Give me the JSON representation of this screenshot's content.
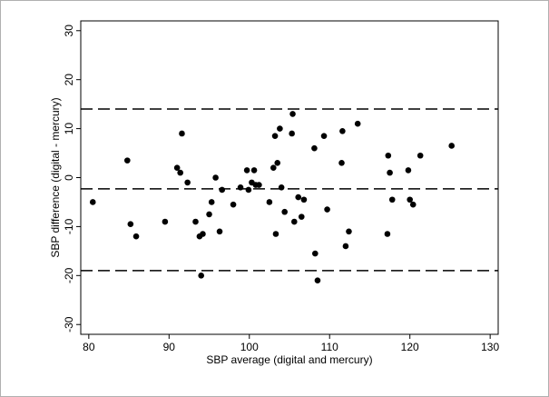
{
  "chart_data": {
    "type": "scatter",
    "title": "",
    "xlabel": "SBP average (digital and mercury)",
    "ylabel": "SBP difference (digital - mercury)",
    "xlim": [
      79,
      131
    ],
    "ylim": [
      -32,
      32
    ],
    "xticks": [
      80,
      90,
      100,
      110,
      120,
      130
    ],
    "yticks": [
      -30,
      -20,
      -10,
      0,
      10,
      20,
      30
    ],
    "grid": false,
    "reference_lines": [
      {
        "y": 14,
        "style": "dashed"
      },
      {
        "y": -2.3,
        "style": "dashed"
      },
      {
        "y": -19,
        "style": "dashed"
      }
    ],
    "colors": {
      "points": "#000000",
      "lines": "#000000"
    },
    "x": [
      80.5,
      84.8,
      85.2,
      85.9,
      89.5,
      91.0,
      91.4,
      91.6,
      92.3,
      93.3,
      93.8,
      94.0,
      94.2,
      95.0,
      95.3,
      95.8,
      96.3,
      96.6,
      98.0,
      98.9,
      99.7,
      99.9,
      100.3,
      100.6,
      100.8,
      101.2,
      102.5,
      103.0,
      103.2,
      103.3,
      103.5,
      103.8,
      104.0,
      104.4,
      105.3,
      105.4,
      105.6,
      106.1,
      106.5,
      106.8,
      108.1,
      108.2,
      108.5,
      109.3,
      109.7,
      111.5,
      111.6,
      112.0,
      112.4,
      113.5,
      117.2,
      117.3,
      117.5,
      117.8,
      119.8,
      120.0,
      120.4,
      121.3,
      125.2
    ],
    "y": [
      -5,
      3.5,
      -9.5,
      -12,
      -9,
      2,
      1,
      9,
      -1,
      -9,
      -12,
      -20,
      -11.5,
      -7.5,
      -5,
      0,
      -11,
      -2.5,
      -5.5,
      -2,
      1.5,
      -2.5,
      -1,
      1.5,
      -1.5,
      -1.5,
      -5,
      2,
      8.5,
      -11.5,
      3,
      10,
      -2,
      -7,
      9,
      13,
      -9,
      -4,
      -8,
      -4.5,
      6,
      -15.5,
      -21,
      8.5,
      -6.5,
      3,
      9.5,
      -14,
      -11,
      11,
      -11.5,
      4.5,
      1,
      -4.5,
      1.5,
      -4.5,
      -5.5,
      4.5,
      6.5
    ]
  }
}
